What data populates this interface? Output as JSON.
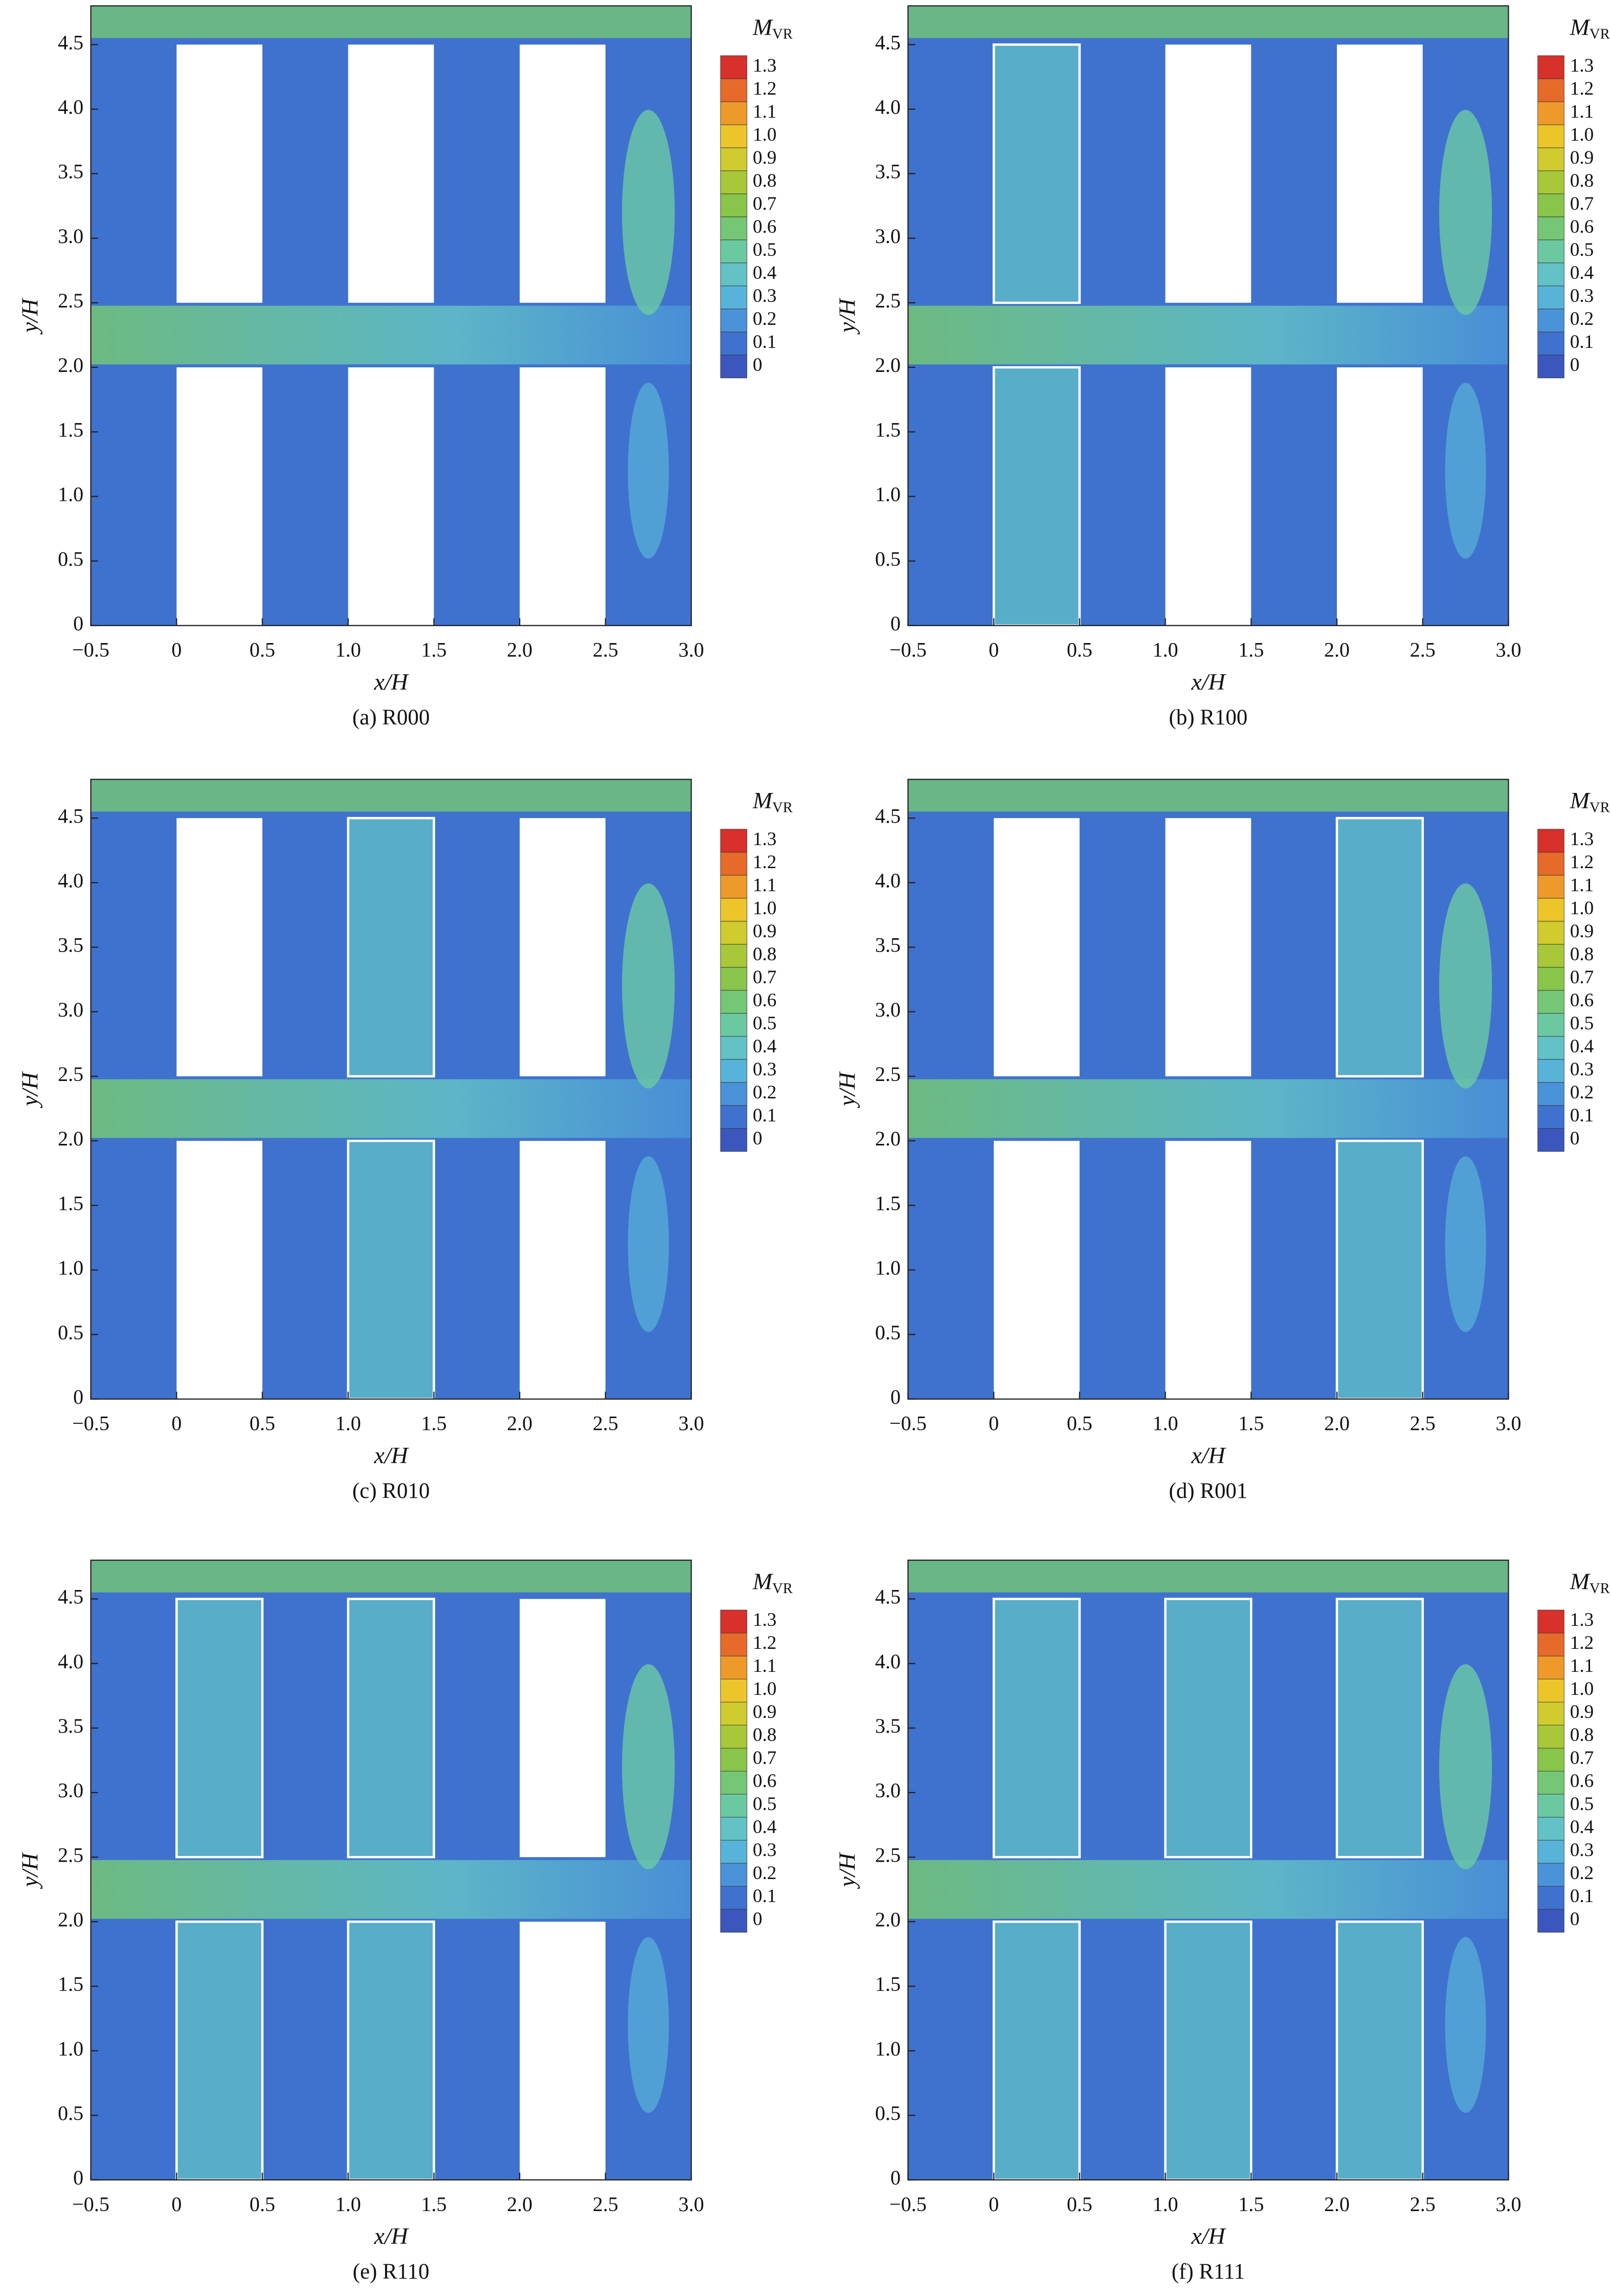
{
  "chart_data": [
    {
      "type": "contour",
      "caption": "(a) R000",
      "xlabel": "x/H",
      "ylabel": "y/H",
      "xlim": [
        -0.5,
        3
      ],
      "ylim": [
        0,
        4.8
      ],
      "xticks": [
        {
          "value": -0.5,
          "label": "−0.5"
        },
        0,
        0.5,
        {
          "value": 1,
          "label": "1.0"
        },
        1.5,
        {
          "value": 2,
          "label": "2.0"
        },
        2.5,
        {
          "value": 3,
          "label": "3.0"
        }
      ],
      "yticks": [
        0,
        0.5,
        {
          "value": 1,
          "label": "1.0"
        },
        1.5,
        {
          "value": 2,
          "label": "2.0"
        },
        2.5,
        {
          "value": 3,
          "label": "3.0"
        },
        3.5,
        {
          "value": 4,
          "label": "4.0"
        },
        4.5
      ],
      "colorbar": {
        "title": "M",
        "subscript": "VR",
        "ticks": [
          0,
          0.1,
          0.2,
          0.3,
          0.4,
          0.5,
          0.6,
          0.7,
          0.8,
          0.9,
          {
            "value": 1,
            "label": "1.0"
          },
          1.1,
          1.2,
          1.3
        ],
        "colors": [
          "#3b57bd",
          "#3f72cf",
          "#4a93d8",
          "#58b3d9",
          "#62c2c6",
          "#6bc9a2",
          "#74c774",
          "#88c54a",
          "#a8c83a",
          "#d0cb2e",
          "#ecc52a",
          "#ee9a2a",
          "#e66a2a",
          "#d8302a"
        ]
      },
      "blocks": [
        {
          "x": [
            0,
            0.5
          ],
          "y": [
            2.5,
            4.5
          ],
          "vegetated": false
        },
        {
          "x": [
            0,
            0.5
          ],
          "y": [
            0,
            2
          ],
          "vegetated": false
        },
        {
          "x": [
            1,
            1.5
          ],
          "y": [
            2.5,
            4.5
          ],
          "vegetated": false
        },
        {
          "x": [
            1,
            1.5
          ],
          "y": [
            0,
            2
          ],
          "vegetated": false
        },
        {
          "x": [
            2,
            2.5
          ],
          "y": [
            2.5,
            4.5
          ],
          "vegetated": false
        },
        {
          "x": [
            2,
            2.5
          ],
          "y": [
            0,
            2
          ],
          "vegetated": false
        }
      ]
    },
    {
      "type": "contour",
      "caption": "(b) R100",
      "xlabel": "x/H",
      "ylabel": "y/H",
      "xlim": [
        -0.5,
        3
      ],
      "ylim": [
        0,
        4.8
      ],
      "xticks": [
        {
          "value": -0.5,
          "label": "−0.5"
        },
        0,
        0.5,
        {
          "value": 1,
          "label": "1.0"
        },
        1.5,
        {
          "value": 2,
          "label": "2.0"
        },
        2.5,
        {
          "value": 3,
          "label": "3.0"
        }
      ],
      "yticks": [
        0,
        0.5,
        {
          "value": 1,
          "label": "1.0"
        },
        1.5,
        {
          "value": 2,
          "label": "2.0"
        },
        2.5,
        {
          "value": 3,
          "label": "3.0"
        },
        3.5,
        {
          "value": 4,
          "label": "4.0"
        },
        4.5
      ],
      "colorbar": {
        "title": "M",
        "subscript": "VR",
        "ticks": [
          0,
          0.1,
          0.2,
          0.3,
          0.4,
          0.5,
          0.6,
          0.7,
          0.8,
          0.9,
          {
            "value": 1,
            "label": "1.0"
          },
          1.1,
          1.2,
          1.3
        ],
        "colors": [
          "#3b57bd",
          "#3f72cf",
          "#4a93d8",
          "#58b3d9",
          "#62c2c6",
          "#6bc9a2",
          "#74c774",
          "#88c54a",
          "#a8c83a",
          "#d0cb2e",
          "#ecc52a",
          "#ee9a2a",
          "#e66a2a",
          "#d8302a"
        ]
      },
      "blocks": [
        {
          "x": [
            0,
            0.5
          ],
          "y": [
            2.5,
            4.5
          ],
          "vegetated": true
        },
        {
          "x": [
            0,
            0.5
          ],
          "y": [
            0,
            2
          ],
          "vegetated": true
        },
        {
          "x": [
            1,
            1.5
          ],
          "y": [
            2.5,
            4.5
          ],
          "vegetated": false
        },
        {
          "x": [
            1,
            1.5
          ],
          "y": [
            0,
            2
          ],
          "vegetated": false
        },
        {
          "x": [
            2,
            2.5
          ],
          "y": [
            2.5,
            4.5
          ],
          "vegetated": false
        },
        {
          "x": [
            2,
            2.5
          ],
          "y": [
            0,
            2
          ],
          "vegetated": false
        }
      ]
    },
    {
      "type": "contour",
      "caption": "(c) R010",
      "xlabel": "x/H",
      "ylabel": "y/H",
      "xlim": [
        -0.5,
        3
      ],
      "ylim": [
        0,
        4.8
      ],
      "xticks": [
        {
          "value": -0.5,
          "label": "−0.5"
        },
        0,
        0.5,
        {
          "value": 1,
          "label": "1.0"
        },
        1.5,
        {
          "value": 2,
          "label": "2.0"
        },
        2.5,
        {
          "value": 3,
          "label": "3.0"
        }
      ],
      "yticks": [
        0,
        0.5,
        {
          "value": 1,
          "label": "1.0"
        },
        1.5,
        {
          "value": 2,
          "label": "2.0"
        },
        2.5,
        {
          "value": 3,
          "label": "3.0"
        },
        3.5,
        {
          "value": 4,
          "label": "4.0"
        },
        4.5
      ],
      "colorbar": {
        "title": "M",
        "subscript": "VR",
        "ticks": [
          0,
          0.1,
          0.2,
          0.3,
          0.4,
          0.5,
          0.6,
          0.7,
          0.8,
          0.9,
          {
            "value": 1,
            "label": "1.0"
          },
          1.1,
          1.2,
          1.3
        ],
        "colors": [
          "#3b57bd",
          "#3f72cf",
          "#4a93d8",
          "#58b3d9",
          "#62c2c6",
          "#6bc9a2",
          "#74c774",
          "#88c54a",
          "#a8c83a",
          "#d0cb2e",
          "#ecc52a",
          "#ee9a2a",
          "#e66a2a",
          "#d8302a"
        ]
      },
      "blocks": [
        {
          "x": [
            0,
            0.5
          ],
          "y": [
            2.5,
            4.5
          ],
          "vegetated": false
        },
        {
          "x": [
            0,
            0.5
          ],
          "y": [
            0,
            2
          ],
          "vegetated": false
        },
        {
          "x": [
            1,
            1.5
          ],
          "y": [
            2.5,
            4.5
          ],
          "vegetated": true
        },
        {
          "x": [
            1,
            1.5
          ],
          "y": [
            0,
            2
          ],
          "vegetated": true
        },
        {
          "x": [
            2,
            2.5
          ],
          "y": [
            2.5,
            4.5
          ],
          "vegetated": false
        },
        {
          "x": [
            2,
            2.5
          ],
          "y": [
            0,
            2
          ],
          "vegetated": false
        }
      ]
    },
    {
      "type": "contour",
      "caption": "(d) R001",
      "xlabel": "x/H",
      "ylabel": "y/H",
      "xlim": [
        -0.5,
        3
      ],
      "ylim": [
        0,
        4.8
      ],
      "xticks": [
        {
          "value": -0.5,
          "label": "−0.5"
        },
        0,
        0.5,
        {
          "value": 1,
          "label": "1.0"
        },
        1.5,
        {
          "value": 2,
          "label": "2.0"
        },
        2.5,
        {
          "value": 3,
          "label": "3.0"
        }
      ],
      "yticks": [
        0,
        0.5,
        {
          "value": 1,
          "label": "1.0"
        },
        1.5,
        {
          "value": 2,
          "label": "2.0"
        },
        2.5,
        {
          "value": 3,
          "label": "3.0"
        },
        3.5,
        {
          "value": 4,
          "label": "4.0"
        },
        4.5
      ],
      "colorbar": {
        "title": "M",
        "subscript": "VR",
        "ticks": [
          0,
          0.1,
          0.2,
          0.3,
          0.4,
          0.5,
          0.6,
          0.7,
          0.8,
          0.9,
          {
            "value": 1,
            "label": "1.0"
          },
          1.1,
          1.2,
          1.3
        ],
        "colors": [
          "#3b57bd",
          "#3f72cf",
          "#4a93d8",
          "#58b3d9",
          "#62c2c6",
          "#6bc9a2",
          "#74c774",
          "#88c54a",
          "#a8c83a",
          "#d0cb2e",
          "#ecc52a",
          "#ee9a2a",
          "#e66a2a",
          "#d8302a"
        ]
      },
      "blocks": [
        {
          "x": [
            0,
            0.5
          ],
          "y": [
            2.5,
            4.5
          ],
          "vegetated": false
        },
        {
          "x": [
            0,
            0.5
          ],
          "y": [
            0,
            2
          ],
          "vegetated": false
        },
        {
          "x": [
            1,
            1.5
          ],
          "y": [
            2.5,
            4.5
          ],
          "vegetated": false
        },
        {
          "x": [
            1,
            1.5
          ],
          "y": [
            0,
            2
          ],
          "vegetated": false
        },
        {
          "x": [
            2,
            2.5
          ],
          "y": [
            2.5,
            4.5
          ],
          "vegetated": true
        },
        {
          "x": [
            2,
            2.5
          ],
          "y": [
            0,
            2
          ],
          "vegetated": true
        }
      ]
    },
    {
      "type": "contour",
      "caption": "(e) R110",
      "xlabel": "x/H",
      "ylabel": "y/H",
      "xlim": [
        -0.5,
        3
      ],
      "ylim": [
        0,
        4.8
      ],
      "xticks": [
        {
          "value": -0.5,
          "label": "−0.5"
        },
        0,
        0.5,
        {
          "value": 1,
          "label": "1.0"
        },
        1.5,
        {
          "value": 2,
          "label": "2.0"
        },
        2.5,
        {
          "value": 3,
          "label": "3.0"
        }
      ],
      "yticks": [
        0,
        0.5,
        {
          "value": 1,
          "label": "1.0"
        },
        1.5,
        {
          "value": 2,
          "label": "2.0"
        },
        2.5,
        {
          "value": 3,
          "label": "3.0"
        },
        3.5,
        {
          "value": 4,
          "label": "4.0"
        },
        4.5
      ],
      "colorbar": {
        "title": "M",
        "subscript": "VR",
        "ticks": [
          0,
          0.1,
          0.2,
          0.3,
          0.4,
          0.5,
          0.6,
          0.7,
          0.8,
          0.9,
          {
            "value": 1,
            "label": "1.0"
          },
          1.1,
          1.2,
          1.3
        ],
        "colors": [
          "#3b57bd",
          "#3f72cf",
          "#4a93d8",
          "#58b3d9",
          "#62c2c6",
          "#6bc9a2",
          "#74c774",
          "#88c54a",
          "#a8c83a",
          "#d0cb2e",
          "#ecc52a",
          "#ee9a2a",
          "#e66a2a",
          "#d8302a"
        ]
      },
      "blocks": [
        {
          "x": [
            0,
            0.5
          ],
          "y": [
            2.5,
            4.5
          ],
          "vegetated": true
        },
        {
          "x": [
            0,
            0.5
          ],
          "y": [
            0,
            2
          ],
          "vegetated": true
        },
        {
          "x": [
            1,
            1.5
          ],
          "y": [
            2.5,
            4.5
          ],
          "vegetated": true
        },
        {
          "x": [
            1,
            1.5
          ],
          "y": [
            0,
            2
          ],
          "vegetated": true
        },
        {
          "x": [
            2,
            2.5
          ],
          "y": [
            2.5,
            4.5
          ],
          "vegetated": false
        },
        {
          "x": [
            2,
            2.5
          ],
          "y": [
            0,
            2
          ],
          "vegetated": false
        }
      ]
    },
    {
      "type": "contour",
      "caption": "(f) R111",
      "xlabel": "x/H",
      "ylabel": "y/H",
      "xlim": [
        -0.5,
        3
      ],
      "ylim": [
        0,
        4.8
      ],
      "xticks": [
        {
          "value": -0.5,
          "label": "−0.5"
        },
        0,
        0.5,
        {
          "value": 1,
          "label": "1.0"
        },
        1.5,
        {
          "value": 2,
          "label": "2.0"
        },
        2.5,
        {
          "value": 3,
          "label": "3.0"
        }
      ],
      "yticks": [
        0,
        0.5,
        {
          "value": 1,
          "label": "1.0"
        },
        1.5,
        {
          "value": 2,
          "label": "2.0"
        },
        2.5,
        {
          "value": 3,
          "label": "3.0"
        },
        3.5,
        {
          "value": 4,
          "label": "4.0"
        },
        4.5
      ],
      "colorbar": {
        "title": "M",
        "subscript": "VR",
        "ticks": [
          0,
          0.1,
          0.2,
          0.3,
          0.4,
          0.5,
          0.6,
          0.7,
          0.8,
          0.9,
          {
            "value": 1,
            "label": "1.0"
          },
          1.1,
          1.2,
          1.3
        ],
        "colors": [
          "#3b57bd",
          "#3f72cf",
          "#4a93d8",
          "#58b3d9",
          "#62c2c6",
          "#6bc9a2",
          "#74c774",
          "#88c54a",
          "#a8c83a",
          "#d0cb2e",
          "#ecc52a",
          "#ee9a2a",
          "#e66a2a",
          "#d8302a"
        ]
      },
      "blocks": [
        {
          "x": [
            0,
            0.5
          ],
          "y": [
            2.5,
            4.5
          ],
          "vegetated": true
        },
        {
          "x": [
            0,
            0.5
          ],
          "y": [
            0,
            2
          ],
          "vegetated": true
        },
        {
          "x": [
            1,
            1.5
          ],
          "y": [
            2.5,
            4.5
          ],
          "vegetated": true
        },
        {
          "x": [
            1,
            1.5
          ],
          "y": [
            0,
            2
          ],
          "vegetated": true
        },
        {
          "x": [
            2,
            2.5
          ],
          "y": [
            2.5,
            4.5
          ],
          "vegetated": true
        },
        {
          "x": [
            2,
            2.5
          ],
          "y": [
            0,
            2
          ],
          "vegetated": true
        }
      ]
    }
  ]
}
